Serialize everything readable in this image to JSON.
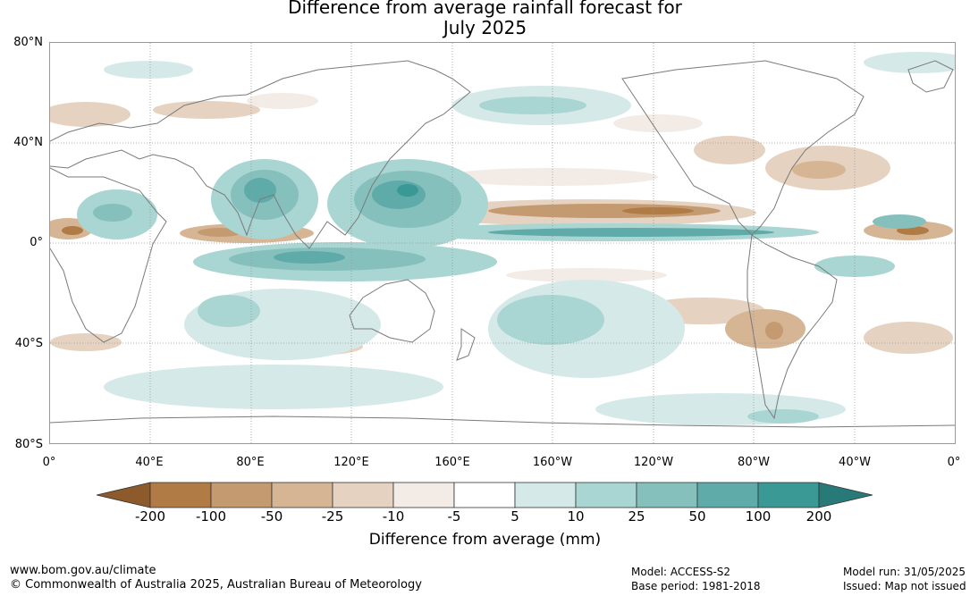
{
  "title": {
    "line1": "Difference from average rainfall forecast for",
    "line2": "July 2025"
  },
  "y_axis": {
    "labels": [
      "80°N",
      "40°N",
      "0°",
      "40°S",
      "80°S"
    ]
  },
  "x_axis": {
    "labels": [
      "0°",
      "40°E",
      "80°E",
      "120°E",
      "160°E",
      "160°W",
      "120°W",
      "80°W",
      "40°W",
      "0°"
    ]
  },
  "colorbar": {
    "label": "Difference from average (mm)",
    "ticks": [
      "-200",
      "-100",
      "-50",
      "-25",
      "-10",
      "-5",
      "5",
      "10",
      "25",
      "50",
      "100",
      "200"
    ],
    "colors": [
      "#8c5a2b",
      "#b07b45",
      "#c49a70",
      "#d6b595",
      "#e6d2c0",
      "#f2ebe6",
      "#ffffff",
      "#d5eae8",
      "#a9d5d2",
      "#86c0bd",
      "#5fabaa",
      "#3a9895",
      "#287a78"
    ]
  },
  "footer": {
    "url": "www.bom.gov.au/climate",
    "copyright": "© Commonwealth of Australia 2025, Australian Bureau of Meteorology",
    "model": "Model: ACCESS-S2",
    "base_period": "Base period: 1981-2018",
    "model_run": "Model run: 31/05/2025",
    "issued": "Issued: Map not issued"
  }
}
